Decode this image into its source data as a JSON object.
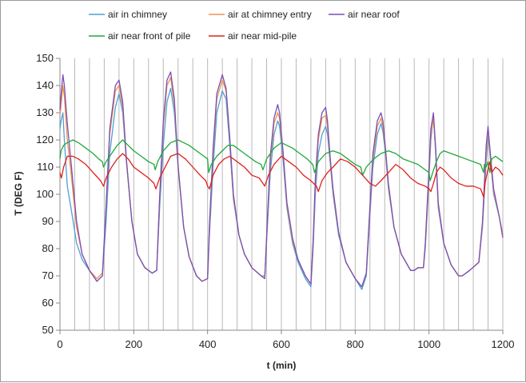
{
  "chart_data": {
    "type": "line",
    "title": "",
    "xlabel": "t (min)",
    "ylabel": "T (DEG F)",
    "xlim": [
      0,
      1200
    ],
    "ylim": [
      50,
      150
    ],
    "xticks": [
      0,
      200,
      400,
      600,
      800,
      1000,
      1200
    ],
    "yticks": [
      50,
      60,
      70,
      80,
      90,
      100,
      110,
      120,
      130,
      140,
      150
    ],
    "vertical_grid_every": 40,
    "legend_placement": "top",
    "series": [
      {
        "name": "air in chimney",
        "color": "#4f9fd6",
        "x": [
          0,
          3,
          8,
          12,
          20,
          30,
          45,
          60,
          80,
          100,
          115,
          125,
          135,
          150,
          160,
          170,
          180,
          195,
          210,
          230,
          250,
          262,
          270,
          280,
          290,
          300,
          310,
          320,
          335,
          350,
          370,
          385,
          400,
          405,
          415,
          425,
          440,
          450,
          460,
          470,
          485,
          500,
          520,
          545,
          555,
          562,
          570,
          580,
          590,
          595,
          605,
          615,
          630,
          645,
          665,
          680,
          686,
          692,
          700,
          710,
          720,
          725,
          732,
          740,
          755,
          775,
          800,
          818,
          830,
          838,
          848,
          860,
          870,
          875,
          882,
          890,
          905,
          925,
          950,
          960,
          970,
          985,
          990,
          998,
          1005,
          1012,
          1018,
          1025,
          1040,
          1060,
          1080,
          1090,
          1110,
          1135,
          1145,
          1150,
          1155,
          1160,
          1165,
          1175,
          1190,
          1200
        ],
        "values": [
          124,
          127,
          130,
          120,
          103,
          95,
          82,
          76,
          72,
          68,
          70,
          90,
          115,
          132,
          137,
          130,
          112,
          90,
          78,
          73,
          71,
          72,
          95,
          118,
          134,
          139,
          130,
          110,
          88,
          77,
          70,
          68,
          69,
          85,
          110,
          130,
          138,
          135,
          118,
          98,
          85,
          78,
          73,
          70,
          70,
          88,
          108,
          122,
          127,
          125,
          112,
          95,
          82,
          75,
          69,
          66,
          80,
          100,
          115,
          122,
          125,
          122,
          112,
          100,
          85,
          75,
          69,
          65,
          70,
          88,
          110,
          122,
          126,
          123,
          115,
          102,
          88,
          78,
          72,
          72,
          73,
          73,
          80,
          100,
          120,
          129,
          115,
          95,
          82,
          74,
          70,
          70,
          72,
          75,
          88,
          100,
          112,
          122,
          115,
          100,
          92,
          85
        ]
      },
      {
        "name": "air at chimney entry",
        "color": "#f0934d",
        "x": [
          0,
          4,
          8,
          12,
          20,
          30,
          45,
          60,
          80,
          100,
          115,
          125,
          135,
          150,
          160,
          170,
          180,
          195,
          210,
          230,
          250,
          262,
          270,
          280,
          290,
          300,
          310,
          320,
          335,
          350,
          370,
          385,
          400,
          405,
          415,
          425,
          440,
          450,
          460,
          470,
          485,
          500,
          520,
          545,
          555,
          562,
          570,
          580,
          590,
          595,
          605,
          615,
          630,
          645,
          665,
          680,
          686,
          692,
          700,
          710,
          720,
          725,
          732,
          740,
          755,
          775,
          800,
          818,
          830,
          838,
          848,
          860,
          870,
          875,
          882,
          890,
          905,
          925,
          950,
          960,
          970,
          985,
          990,
          998,
          1005,
          1012,
          1018,
          1025,
          1040,
          1060,
          1080,
          1090,
          1110,
          1135,
          1145,
          1150,
          1155,
          1160,
          1165,
          1175,
          1190,
          1200
        ],
        "values": [
          129,
          134,
          140,
          136,
          120,
          108,
          88,
          78,
          72,
          69,
          71,
          95,
          122,
          138,
          140,
          132,
          112,
          90,
          78,
          73,
          71,
          72,
          98,
          125,
          140,
          143,
          133,
          110,
          88,
          77,
          70,
          68,
          69,
          88,
          115,
          135,
          142,
          138,
          120,
          99,
          85,
          78,
          73,
          70,
          69,
          90,
          112,
          126,
          130,
          128,
          114,
          96,
          83,
          76,
          70,
          67,
          82,
          104,
          120,
          128,
          129,
          125,
          113,
          101,
          86,
          75,
          69,
          66,
          71,
          90,
          113,
          125,
          128,
          125,
          116,
          103,
          88,
          78,
          72,
          72,
          73,
          73,
          81,
          102,
          122,
          128,
          116,
          96,
          82,
          74,
          70,
          70,
          72,
          75,
          89,
          102,
          115,
          124,
          116,
          101,
          92,
          85
        ]
      },
      {
        "name": "air near roof",
        "color": "#7a4fb5",
        "x": [
          0,
          4,
          8,
          12,
          20,
          30,
          45,
          60,
          80,
          100,
          115,
          125,
          135,
          150,
          160,
          170,
          180,
          195,
          210,
          230,
          250,
          262,
          270,
          280,
          290,
          300,
          310,
          320,
          335,
          350,
          370,
          385,
          400,
          405,
          415,
          425,
          440,
          450,
          460,
          470,
          485,
          500,
          520,
          545,
          555,
          562,
          570,
          580,
          590,
          595,
          605,
          615,
          630,
          645,
          665,
          680,
          686,
          692,
          700,
          710,
          720,
          725,
          732,
          740,
          755,
          775,
          800,
          818,
          830,
          838,
          848,
          860,
          870,
          875,
          882,
          890,
          905,
          925,
          950,
          960,
          970,
          985,
          990,
          998,
          1005,
          1012,
          1018,
          1025,
          1040,
          1060,
          1080,
          1090,
          1110,
          1135,
          1145,
          1150,
          1155,
          1160,
          1165,
          1175,
          1190,
          1200
        ],
        "values": [
          131,
          138,
          144,
          140,
          126,
          112,
          90,
          78,
          72,
          68,
          70,
          96,
          124,
          140,
          142,
          134,
          113,
          90,
          78,
          73,
          71,
          72,
          99,
          127,
          142,
          145,
          135,
          111,
          88,
          77,
          70,
          68,
          69,
          89,
          117,
          137,
          144,
          139,
          121,
          100,
          85,
          78,
          73,
          70,
          69,
          91,
          114,
          128,
          133,
          130,
          115,
          97,
          84,
          76,
          70,
          67,
          83,
          106,
          122,
          130,
          132,
          127,
          114,
          102,
          86,
          75,
          69,
          66,
          71,
          91,
          115,
          127,
          130,
          127,
          117,
          104,
          88,
          78,
          72,
          72,
          73,
          73,
          82,
          104,
          124,
          130,
          117,
          97,
          82,
          74,
          70,
          70,
          72,
          75,
          90,
          104,
          118,
          125,
          117,
          102,
          92,
          84
        ]
      },
      {
        "name": "air near front of pile",
        "color": "#1fa83a",
        "x": [
          0,
          3,
          10,
          20,
          35,
          50,
          70,
          90,
          105,
          115,
          118,
          125,
          140,
          155,
          170,
          185,
          200,
          220,
          240,
          255,
          258,
          265,
          280,
          300,
          320,
          335,
          350,
          370,
          390,
          400,
          403,
          410,
          425,
          440,
          455,
          470,
          490,
          510,
          530,
          545,
          550,
          560,
          580,
          600,
          615,
          630,
          650,
          670,
          685,
          690,
          700,
          720,
          740,
          760,
          780,
          800,
          815,
          820,
          830,
          850,
          870,
          890,
          910,
          930,
          950,
          970,
          990,
          1000,
          1003,
          1010,
          1020,
          1030,
          1040,
          1060,
          1080,
          1100,
          1120,
          1140,
          1148,
          1150,
          1155,
          1160,
          1165,
          1170,
          1180,
          1190,
          1200
        ],
        "values": [
          113,
          116,
          118,
          119,
          120,
          119,
          117,
          115,
          113,
          112,
          110,
          112,
          115,
          118,
          120,
          118,
          116,
          114,
          112,
          111,
          109,
          112,
          116,
          119,
          120,
          119,
          118,
          116,
          114,
          113,
          108,
          111,
          114,
          116,
          118,
          118,
          116,
          114,
          112,
          111,
          109,
          113,
          117,
          119,
          118,
          117,
          115,
          113,
          111,
          108,
          112,
          115,
          116,
          115,
          113,
          111,
          110,
          107,
          110,
          113,
          115,
          116,
          115,
          113,
          112,
          111,
          109,
          108,
          105,
          108,
          112,
          115,
          116,
          115,
          114,
          113,
          112,
          111,
          108,
          111,
          110,
          112,
          108,
          113,
          114,
          113,
          112
        ]
      },
      {
        "name": "air near mid-pile",
        "color": "#e0201b",
        "x": [
          0,
          4,
          10,
          20,
          35,
          50,
          70,
          90,
          110,
          118,
          125,
          140,
          155,
          170,
          185,
          200,
          220,
          240,
          255,
          260,
          270,
          285,
          300,
          320,
          340,
          360,
          380,
          395,
          400,
          405,
          415,
          430,
          445,
          460,
          480,
          500,
          520,
          540,
          550,
          555,
          565,
          580,
          600,
          620,
          640,
          660,
          680,
          695,
          700,
          710,
          725,
          740,
          760,
          780,
          800,
          820,
          840,
          855,
          870,
          890,
          910,
          930,
          950,
          970,
          990,
          1000,
          1005,
          1012,
          1020,
          1030,
          1040,
          1060,
          1080,
          1100,
          1120,
          1140,
          1148,
          1152,
          1158,
          1165,
          1170,
          1180,
          1190,
          1200
        ],
        "values": [
          108,
          106,
          110,
          114,
          114,
          113,
          111,
          108,
          105,
          103,
          106,
          110,
          113,
          115,
          113,
          110,
          108,
          106,
          104,
          102,
          106,
          110,
          114,
          115,
          113,
          110,
          107,
          105,
          103,
          102,
          107,
          111,
          113,
          114,
          112,
          110,
          107,
          106,
          104,
          103,
          107,
          111,
          114,
          112,
          110,
          107,
          105,
          103,
          101,
          105,
          108,
          110,
          113,
          112,
          110,
          107,
          104,
          103,
          105,
          108,
          111,
          109,
          106,
          104,
          103,
          102,
          101,
          104,
          108,
          110,
          109,
          106,
          104,
          103,
          103,
          102,
          99,
          104,
          108,
          112,
          108,
          110,
          109,
          107
        ]
      }
    ]
  }
}
